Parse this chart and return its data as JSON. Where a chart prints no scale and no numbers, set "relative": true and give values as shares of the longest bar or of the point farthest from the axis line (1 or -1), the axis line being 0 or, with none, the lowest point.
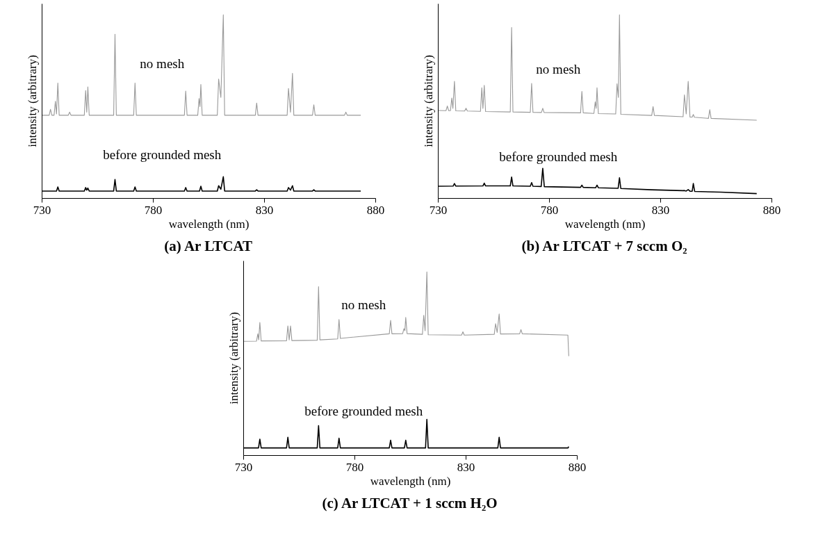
{
  "chart_data": [
    {
      "type": "line",
      "title": "(a) Ar LTCAT",
      "xlabel": "wavelength (nm)",
      "ylabel": "intensity (arbitrary)",
      "relative": true,
      "xlim": [
        730,
        880
      ],
      "xticks": [
        730,
        780,
        830,
        880
      ],
      "grid": false,
      "series": [
        {
          "name": "no mesh",
          "color": "#999999",
          "x": [
            730,
            733.2,
            733.8,
            734.4,
            735.4,
            736.0,
            736.5,
            737.1,
            737.7,
            741.8,
            742.4,
            743.0,
            749.0,
            749.6,
            750.1,
            750.6,
            751.2,
            762.2,
            762.8,
            763.4,
            771.2,
            771.8,
            772.4,
            794.0,
            794.6,
            795.2,
            800.0,
            800.6,
            801.0,
            801.4,
            802.0,
            808.8,
            809.4,
            810.4,
            811.5,
            812.1,
            825.9,
            826.5,
            827.1,
            840.2,
            840.8,
            841.7,
            842.6,
            843.2,
            851.6,
            852.2,
            852.8,
            866.0,
            866.6,
            867.2,
            873.3
          ],
          "values": [
            0.453,
            0.453,
            0.485,
            0.453,
            0.453,
            0.529,
            0.46,
            0.628,
            0.453,
            0.453,
            0.47,
            0.453,
            0.453,
            0.588,
            0.47,
            0.607,
            0.453,
            0.453,
            0.894,
            0.453,
            0.453,
            0.628,
            0.453,
            0.453,
            0.585,
            0.453,
            0.453,
            0.544,
            0.5,
            0.621,
            0.453,
            0.453,
            0.65,
            0.55,
            1.0,
            0.453,
            0.453,
            0.519,
            0.453,
            0.453,
            0.599,
            0.47,
            0.681,
            0.453,
            0.453,
            0.51,
            0.453,
            0.453,
            0.47,
            0.453,
            0.453
          ]
        },
        {
          "name": "before grounded mesh",
          "color": "#000000",
          "x": [
            730,
            736.5,
            737.1,
            737.7,
            749.0,
            749.6,
            750.1,
            750.6,
            751.2,
            762.2,
            762.8,
            763.4,
            771.2,
            771.8,
            772.4,
            794.0,
            794.6,
            795.2,
            800.8,
            801.4,
            802.0,
            808.8,
            809.4,
            810.4,
            811.5,
            812.1,
            825.9,
            826.5,
            827.1,
            840.2,
            840.8,
            841.7,
            842.6,
            843.2,
            851.6,
            852.2,
            852.8,
            873.3
          ],
          "values": [
            0.04,
            0.04,
            0.062,
            0.04,
            0.04,
            0.059,
            0.045,
            0.056,
            0.04,
            0.04,
            0.103,
            0.04,
            0.04,
            0.062,
            0.04,
            0.04,
            0.059,
            0.04,
            0.04,
            0.066,
            0.04,
            0.04,
            0.069,
            0.05,
            0.118,
            0.04,
            0.04,
            0.047,
            0.04,
            0.04,
            0.059,
            0.045,
            0.069,
            0.04,
            0.04,
            0.047,
            0.04,
            0.04
          ]
        }
      ]
    },
    {
      "type": "line",
      "title": "(b) Ar LTCAT + 7 sccm O₂",
      "xlabel": "wavelength (nm)",
      "ylabel": "intensity (arbitrary)",
      "relative": true,
      "xlim": [
        730,
        880
      ],
      "xticks": [
        730,
        780,
        830,
        880
      ],
      "grid": false,
      "series": [
        {
          "name": "no mesh",
          "color": "#999999",
          "x": [
            730,
            733.5,
            734.1,
            734.7,
            735.5,
            736.1,
            736.6,
            737.3,
            737.9,
            741.9,
            742.5,
            743.1,
            749.0,
            749.6,
            750.1,
            750.7,
            751.3,
            762.4,
            763.0,
            763.6,
            771.4,
            772.0,
            772.6,
            776.4,
            777.0,
            777.6,
            794.0,
            794.6,
            795.2,
            800.0,
            800.6,
            801.0,
            801.4,
            802.0,
            809.8,
            810.4,
            811.0,
            811.5,
            812.1,
            826.0,
            826.6,
            827.2,
            840.1,
            840.7,
            841.5,
            842.4,
            843.2,
            844.2,
            844.7,
            845.2,
            851.5,
            852.1,
            852.7,
            873.2
          ],
          "values": [
            0.479,
            0.478,
            0.503,
            0.478,
            0.478,
            0.547,
            0.49,
            0.638,
            0.477,
            0.476,
            0.491,
            0.476,
            0.474,
            0.603,
            0.49,
            0.616,
            0.473,
            0.471,
            0.931,
            0.471,
            0.469,
            0.626,
            0.469,
            0.468,
            0.491,
            0.468,
            0.466,
            0.583,
            0.466,
            0.463,
            0.526,
            0.49,
            0.603,
            0.462,
            0.46,
            0.624,
            0.55,
            1.0,
            0.458,
            0.452,
            0.5,
            0.452,
            0.445,
            0.564,
            0.46,
            0.638,
            0.443,
            0.443,
            0.457,
            0.442,
            0.436,
            0.483,
            0.436,
            0.426
          ]
        },
        {
          "name": "before grounded mesh",
          "color": "#000000",
          "x": [
            730,
            736.7,
            737.3,
            737.9,
            750.1,
            750.7,
            751.3,
            762.4,
            763.0,
            763.6,
            771.4,
            772.0,
            772.6,
            776.3,
            777.0,
            777.7,
            794.0,
            794.6,
            795.2,
            800.8,
            801.4,
            802.0,
            810.9,
            811.5,
            812.1,
            826.0,
            840.1,
            840.7,
            841.5,
            842.4,
            843.2,
            844.2,
            844.7,
            845.3,
            857,
            873.2
          ],
          "values": [
            0.066,
            0.067,
            0.081,
            0.067,
            0.068,
            0.083,
            0.068,
            0.068,
            0.116,
            0.068,
            0.066,
            0.086,
            0.066,
            0.065,
            0.164,
            0.064,
            0.06,
            0.072,
            0.06,
            0.058,
            0.072,
            0.058,
            0.055,
            0.112,
            0.054,
            0.047,
            0.042,
            0.043,
            0.04,
            0.048,
            0.039,
            0.039,
            0.081,
            0.038,
            0.034,
            0.026
          ]
        }
      ]
    },
    {
      "type": "line",
      "title": "(c) Ar LTCAT + 1 sccm H₂O",
      "xlabel": "wavelength (nm)",
      "ylabel": "intensity (arbitrary)",
      "relative": true,
      "xlim": [
        730,
        880
      ],
      "xticks": [
        730,
        780,
        830,
        880
      ],
      "grid": false,
      "series": [
        {
          "name": "no mesh",
          "color": "#999999",
          "x": [
            730,
            735.8,
            736.4,
            736.8,
            737.3,
            737.9,
            749.3,
            749.9,
            750.5,
            751.1,
            751.7,
            763.1,
            763.7,
            764.3,
            772.3,
            772.9,
            773.5,
            795.5,
            796.1,
            796.7,
            801.5,
            802.1,
            802.5,
            802.9,
            803.5,
            810.4,
            811.0,
            811.6,
            812.4,
            813.0,
            828.0,
            828.6,
            829.2,
            842.7,
            843.3,
            844.0,
            844.9,
            845.5,
            854.1,
            854.7,
            855.3,
            875.8,
            876.2
          ],
          "values": [
            0.622,
            0.623,
            0.663,
            0.63,
            0.725,
            0.624,
            0.625,
            0.706,
            0.63,
            0.706,
            0.626,
            0.628,
            0.92,
            0.63,
            0.635,
            0.741,
            0.638,
            0.663,
            0.736,
            0.663,
            0.664,
            0.691,
            0.68,
            0.752,
            0.664,
            0.66,
            0.764,
            0.68,
            1.0,
            0.658,
            0.656,
            0.674,
            0.656,
            0.66,
            0.718,
            0.67,
            0.771,
            0.662,
            0.663,
            0.686,
            0.663,
            0.656,
            0.541
          ]
        },
        {
          "name": "before grounded mesh",
          "color": "#000000",
          "x": [
            730,
            736.7,
            737.3,
            737.9,
            749.3,
            749.9,
            750.5,
            763.1,
            763.7,
            764.3,
            772.3,
            772.9,
            773.5,
            795.5,
            796.1,
            796.7,
            802.3,
            802.9,
            803.5,
            811.8,
            812.4,
            813.0,
            844.3,
            844.9,
            845.5,
            875.8,
            876.2
          ],
          "values": [
            0.041,
            0.041,
            0.089,
            0.041,
            0.041,
            0.099,
            0.041,
            0.041,
            0.163,
            0.041,
            0.041,
            0.094,
            0.041,
            0.041,
            0.083,
            0.041,
            0.041,
            0.083,
            0.041,
            0.041,
            0.197,
            0.041,
            0.041,
            0.099,
            0.041,
            0.041,
            0.048
          ]
        }
      ]
    }
  ]
}
